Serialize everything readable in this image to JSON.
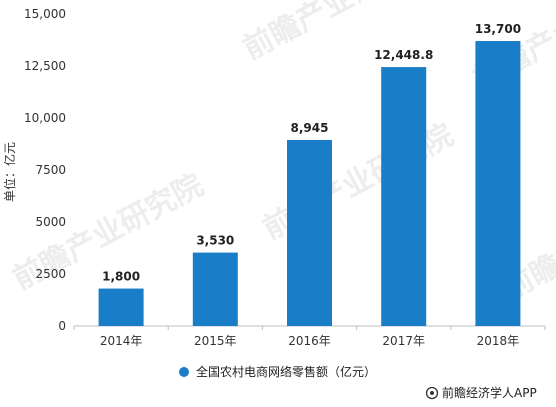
{
  "chart_data": {
    "type": "bar",
    "categories": [
      "2014年",
      "2015年",
      "2016年",
      "2017年",
      "2018年"
    ],
    "values": [
      1800,
      3530,
      8945,
      12448.8,
      13700
    ],
    "value_labels": [
      "1,800",
      "3,530",
      "8,945",
      "12,448.8",
      "13,700"
    ],
    "ylabel": "单位：亿元",
    "ylim": [
      0,
      15000
    ],
    "yticks": [
      0,
      2500,
      5000,
      7500,
      10000,
      12500,
      15000
    ],
    "ytick_labels": [
      "0",
      "2500",
      "5000",
      "7500",
      "10,000",
      "12,500",
      "15,000"
    ],
    "series": [
      {
        "name": "全国农村电商网络零售额（亿元）",
        "values": [
          1800,
          3530,
          8945,
          12448.8,
          13700
        ]
      }
    ],
    "legend": "bottom",
    "grid": false,
    "colors": {
      "bar": "#1a7dc8",
      "axis": "#bfbfbf"
    }
  },
  "watermark": "前瞻产业研究院",
  "footer": {
    "icon": "at-icon",
    "text": "前瞻经济学人APP"
  }
}
